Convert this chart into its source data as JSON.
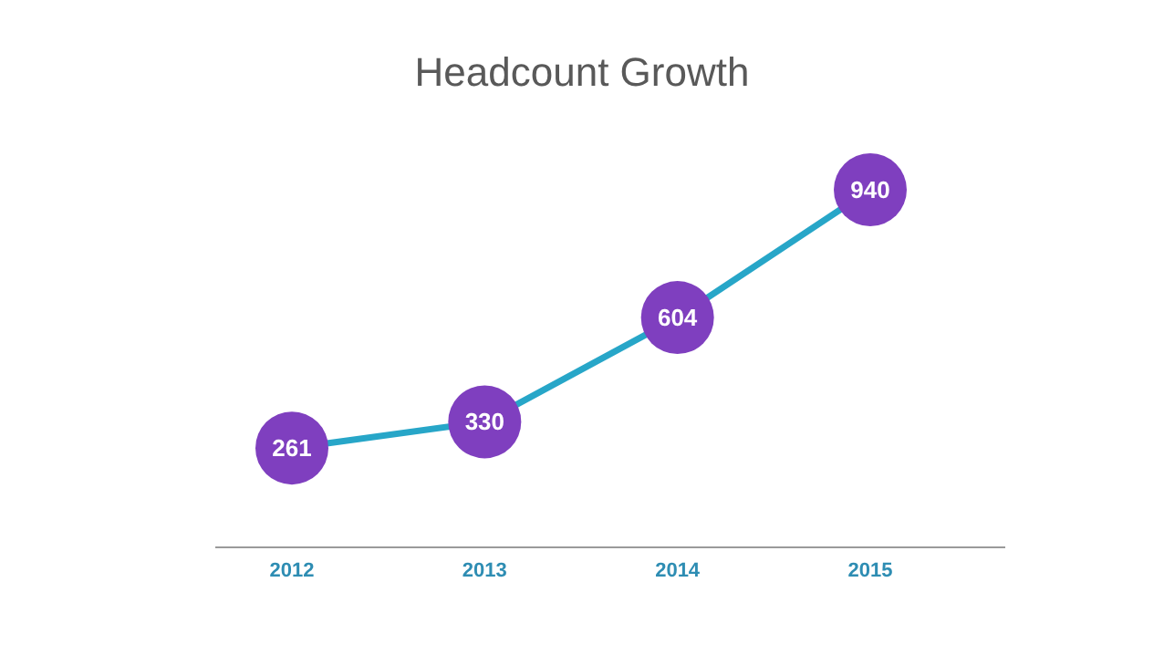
{
  "chart_data": {
    "type": "line",
    "title": "Headcount Growth",
    "categories": [
      "2012",
      "2013",
      "2014",
      "2015"
    ],
    "series": [
      {
        "color": "#27a6c8",
        "values": [
          261,
          330,
          604,
          940
        ]
      }
    ],
    "marker": "circle",
    "data_labels": true
  }
}
